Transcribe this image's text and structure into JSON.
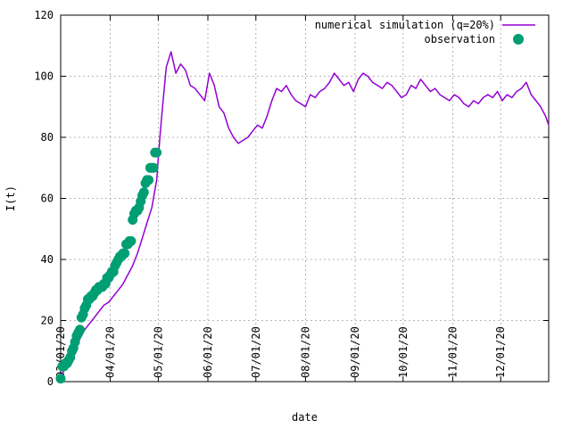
{
  "chart_data": {
    "type": "line+scatter",
    "xlabel": "date",
    "ylabel": "I(t)",
    "ylim": [
      0,
      120
    ],
    "xlim": [
      "2020-03-01",
      "2020-12-31"
    ],
    "yticks": [
      0,
      20,
      40,
      60,
      80,
      100,
      120
    ],
    "xticks": [
      {
        "value": "2020-03-01",
        "label": "03/01/20"
      },
      {
        "value": "2020-04-01",
        "label": "04/01/20"
      },
      {
        "value": "2020-05-01",
        "label": "05/01/20"
      },
      {
        "value": "2020-06-01",
        "label": "06/01/20"
      },
      {
        "value": "2020-07-01",
        "label": "07/01/20"
      },
      {
        "value": "2020-08-01",
        "label": "08/01/20"
      },
      {
        "value": "2020-09-01",
        "label": "09/01/20"
      },
      {
        "value": "2020-10-01",
        "label": "10/01/20"
      },
      {
        "value": "2020-11-01",
        "label": "11/01/20"
      },
      {
        "value": "2020-12-01",
        "label": "12/01/20"
      }
    ],
    "grid": true,
    "legend_position": "top-right",
    "series": [
      {
        "name": "numerical simulation (q=20%)",
        "kind": "line",
        "color": "#9400d3",
        "x": [
          "2020-03-01",
          "2020-03-04",
          "2020-03-07",
          "2020-03-10",
          "2020-03-13",
          "2020-03-16",
          "2020-03-19",
          "2020-03-22",
          "2020-03-25",
          "2020-03-28",
          "2020-03-31",
          "2020-04-03",
          "2020-04-06",
          "2020-04-09",
          "2020-04-12",
          "2020-04-15",
          "2020-04-18",
          "2020-04-21",
          "2020-04-24",
          "2020-04-27",
          "2020-04-30",
          "2020-05-02",
          "2020-05-04",
          "2020-05-06",
          "2020-05-09",
          "2020-05-12",
          "2020-05-15",
          "2020-05-18",
          "2020-05-21",
          "2020-05-24",
          "2020-05-27",
          "2020-05-30",
          "2020-06-02",
          "2020-06-05",
          "2020-06-08",
          "2020-06-11",
          "2020-06-14",
          "2020-06-17",
          "2020-06-20",
          "2020-06-23",
          "2020-06-26",
          "2020-06-29",
          "2020-07-02",
          "2020-07-05",
          "2020-07-08",
          "2020-07-11",
          "2020-07-14",
          "2020-07-17",
          "2020-07-20",
          "2020-07-23",
          "2020-07-26",
          "2020-07-29",
          "2020-08-01",
          "2020-08-04",
          "2020-08-07",
          "2020-08-10",
          "2020-08-13",
          "2020-08-16",
          "2020-08-19",
          "2020-08-22",
          "2020-08-25",
          "2020-08-28",
          "2020-08-31",
          "2020-09-03",
          "2020-09-06",
          "2020-09-09",
          "2020-09-12",
          "2020-09-15",
          "2020-09-18",
          "2020-09-21",
          "2020-09-24",
          "2020-09-27",
          "2020-09-30",
          "2020-10-03",
          "2020-10-06",
          "2020-10-09",
          "2020-10-12",
          "2020-10-15",
          "2020-10-18",
          "2020-10-21",
          "2020-10-24",
          "2020-10-27",
          "2020-10-30",
          "2020-11-02",
          "2020-11-05",
          "2020-11-08",
          "2020-11-11",
          "2020-11-14",
          "2020-11-17",
          "2020-11-20",
          "2020-11-23",
          "2020-11-26",
          "2020-11-29",
          "2020-12-02",
          "2020-12-05",
          "2020-12-08",
          "2020-12-11",
          "2020-12-14",
          "2020-12-17",
          "2020-12-20",
          "2020-12-23",
          "2020-12-26",
          "2020-12-29",
          "2020-12-31"
        ],
        "y": [
          1,
          5,
          8,
          11,
          14,
          17,
          19,
          21,
          23,
          25,
          26,
          28,
          30,
          32,
          35,
          38,
          42,
          47,
          52,
          57,
          66,
          80,
          92,
          103,
          108,
          101,
          104,
          102,
          97,
          96,
          94,
          92,
          101,
          97,
          90,
          88,
          83,
          80,
          78,
          79,
          80,
          82,
          84,
          83,
          87,
          92,
          96,
          95,
          97,
          94,
          92,
          91,
          90,
          94,
          93,
          95,
          96,
          98,
          101,
          99,
          97,
          98,
          95,
          99,
          101,
          100,
          98,
          97,
          96,
          98,
          97,
          95,
          93,
          94,
          97,
          96,
          99,
          97,
          95,
          96,
          94,
          93,
          92,
          94,
          93,
          91,
          90,
          92,
          91,
          93,
          94,
          93,
          95,
          92,
          94,
          93,
          95,
          96,
          98,
          94,
          92,
          90,
          87,
          84
        ]
      },
      {
        "name": "observation",
        "kind": "scatter",
        "color": "#009e73",
        "x": [
          "2020-03-01",
          "2020-03-02",
          "2020-03-03",
          "2020-03-04",
          "2020-03-05",
          "2020-03-06",
          "2020-03-07",
          "2020-03-08",
          "2020-03-09",
          "2020-03-10",
          "2020-03-11",
          "2020-03-12",
          "2020-03-13",
          "2020-03-14",
          "2020-03-15",
          "2020-03-16",
          "2020-03-17",
          "2020-03-18",
          "2020-03-19",
          "2020-03-20",
          "2020-03-21",
          "2020-03-22",
          "2020-03-23",
          "2020-03-24",
          "2020-03-25",
          "2020-03-26",
          "2020-03-27",
          "2020-03-28",
          "2020-03-29",
          "2020-03-30",
          "2020-03-31",
          "2020-04-01",
          "2020-04-02",
          "2020-04-03",
          "2020-04-04",
          "2020-04-05",
          "2020-04-06",
          "2020-04-07",
          "2020-04-08",
          "2020-04-09",
          "2020-04-10",
          "2020-04-11",
          "2020-04-12",
          "2020-04-13",
          "2020-04-14",
          "2020-04-15",
          "2020-04-16",
          "2020-04-17",
          "2020-04-18",
          "2020-04-19",
          "2020-04-20",
          "2020-04-21",
          "2020-04-22",
          "2020-04-23",
          "2020-04-24",
          "2020-04-25",
          "2020-04-26",
          "2020-04-27",
          "2020-04-28",
          "2020-04-29",
          "2020-04-30"
        ],
        "y": [
          1,
          5,
          5,
          6,
          6,
          7,
          8,
          10,
          11,
          13,
          15,
          16,
          17,
          21,
          22,
          24,
          25,
          27,
          27,
          28,
          28,
          29,
          30,
          30,
          31,
          31,
          31,
          32,
          32,
          34,
          34,
          35,
          36,
          36,
          38,
          39,
          40,
          41,
          41,
          42,
          42,
          45,
          45,
          46,
          46,
          53,
          55,
          56,
          56,
          57,
          59,
          61,
          62,
          65,
          66,
          66,
          70,
          70,
          70,
          75,
          75
        ]
      }
    ]
  }
}
